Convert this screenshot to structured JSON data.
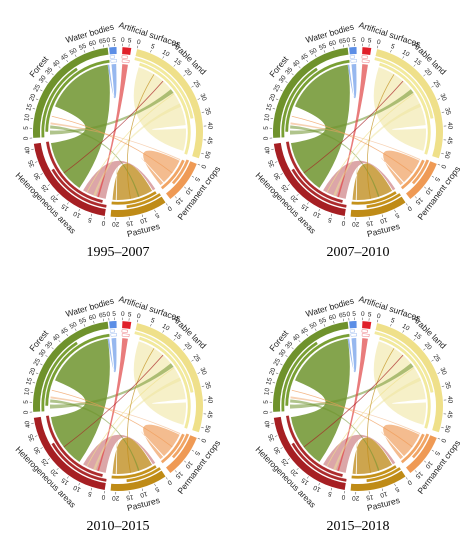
{
  "categories": [
    {
      "name": "Artificial surfaces",
      "color": "#e0202a",
      "sub_color": "#ffffff",
      "chord_color": "#e04545",
      "ticks": [
        "0",
        "5"
      ]
    },
    {
      "name": "Arable land",
      "color": "#efe08a",
      "sub_color": "#f2ea9e",
      "chord_color": "#eee39a",
      "ticks": [
        "0",
        "5",
        "10",
        "15",
        "20",
        "25",
        "30",
        "35",
        "40",
        "45",
        "50"
      ]
    },
    {
      "name": "Permanent crops",
      "color": "#ef9a55",
      "sub_color": "#f1a565",
      "chord_color": "#f0a56a",
      "ticks": [
        "0",
        "5",
        "10",
        "15"
      ]
    },
    {
      "name": "Pastures",
      "color": "#bf8b16",
      "sub_color": "#c5921a",
      "chord_color": "#c08e22",
      "ticks": [
        "0",
        "5",
        "10",
        "15",
        "20"
      ]
    },
    {
      "name": "Heterogeneous areas",
      "color": "#a61f23",
      "sub_color": "#ad2a2c",
      "chord_color": "#b23a3e",
      "ticks": [
        "0",
        "5",
        "10",
        "15",
        "20",
        "25",
        "30",
        "35",
        "40"
      ]
    },
    {
      "name": "Forest",
      "color": "#6f922c",
      "sub_color": "#79a033",
      "chord_color": "#6f942e",
      "ticks": [
        "0",
        "5",
        "10",
        "15",
        "20",
        "25",
        "30",
        "35",
        "40",
        "45",
        "50",
        "55",
        "60",
        "65"
      ]
    },
    {
      "name": "Water bodies",
      "color": "#5b8ee6",
      "sub_color": "#ffffff",
      "chord_color": "#6b9ae8",
      "ticks": [
        "0",
        "5"
      ]
    }
  ],
  "panels": [
    {
      "caption": "1995–2007"
    },
    {
      "caption": "2007–2010"
    },
    {
      "caption": "2010–2015"
    },
    {
      "caption": "2015–2018"
    }
  ]
}
